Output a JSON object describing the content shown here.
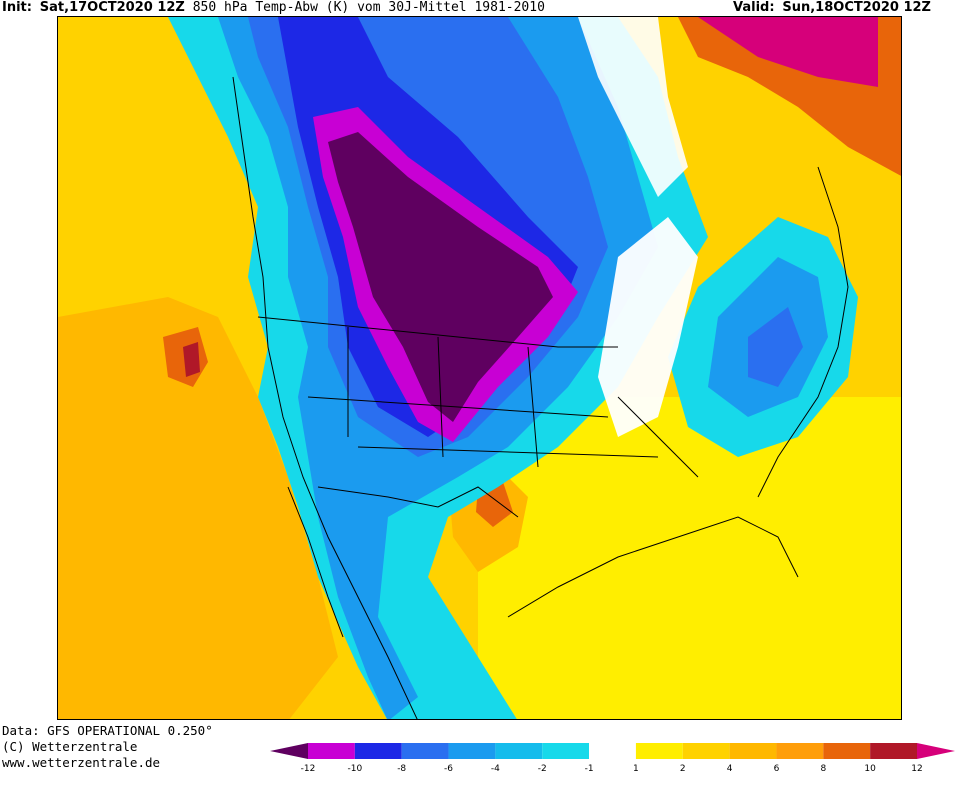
{
  "header": {
    "init_prefix": "Init:",
    "init_value": "Sat,17OCT2020 12Z",
    "title": "850 hPa Temp-Abw (K) vom 30J-Mittel 1981-2010",
    "valid_prefix": "Valid:",
    "valid_value": "Sun,18OCT2020 12Z"
  },
  "footer": {
    "data_line": "Data: GFS OPERATIONAL 0.250°",
    "copyright": "(C) Wetterzentrale",
    "website": "www.wetterzentrale.de"
  },
  "legend": {
    "ticks": [
      "-12",
      "-10",
      "-8",
      "-6",
      "-4",
      "-2",
      "-1",
      "1",
      "2",
      "4",
      "6",
      "8",
      "10",
      "12"
    ],
    "colors": [
      "#5f0060",
      "#c800d4",
      "#1d28e6",
      "#2a6ff0",
      "#1b9bef",
      "#15bcec",
      "#17d9ea",
      "#ffffff",
      "#ffee00",
      "#ffd200",
      "#ffb800",
      "#ff9e0a",
      "#e8650a",
      "#b01828",
      "#d6007a"
    ]
  },
  "colors": {
    "strong_negative": "#5f0060",
    "negative": "#c800d4",
    "cold": "#2a6ff0",
    "cool": "#17d9ea",
    "neutral": "#ffffff",
    "warm": "#ffd200",
    "hot": "#e8650a",
    "very_hot": "#b01828"
  }
}
